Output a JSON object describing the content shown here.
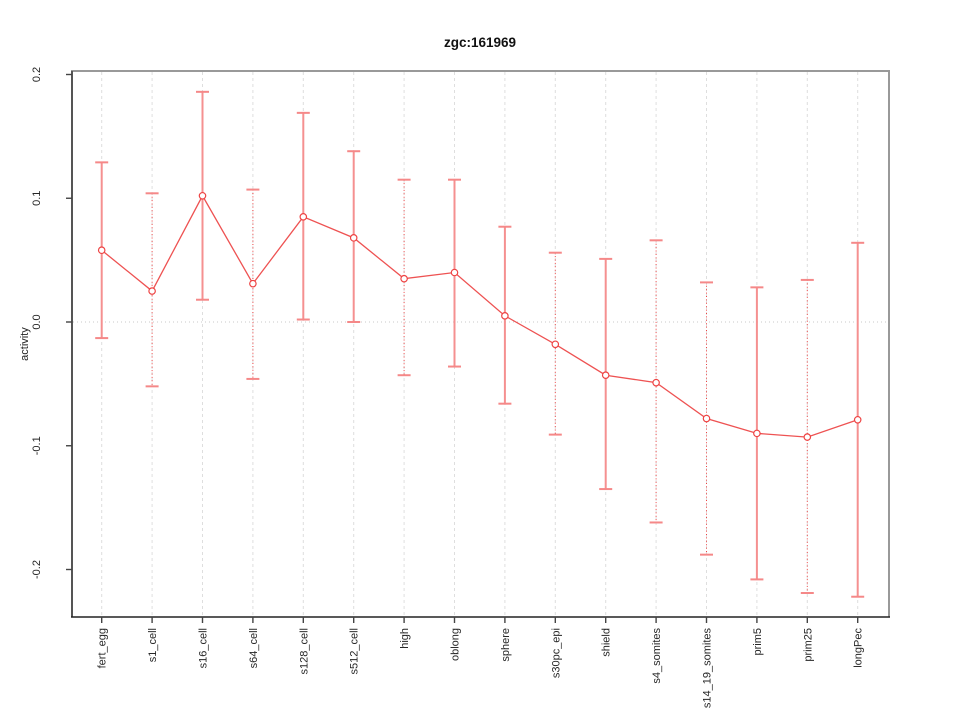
{
  "chart_data": {
    "type": "line",
    "title": "zgc:161969",
    "ylabel": "activity",
    "xlabel": "",
    "categories": [
      "fert_egg",
      "s1_cell",
      "s16_cell",
      "s64_cell",
      "s128_cell",
      "s512_cell",
      "high",
      "oblong",
      "sphere",
      "s30pc_epi",
      "shield",
      "s4_somites",
      "s14_19_somites",
      "prim5",
      "prim25",
      "longPec"
    ],
    "series": [
      {
        "name": "activity",
        "values": [
          0.058,
          0.025,
          0.102,
          0.031,
          0.085,
          0.068,
          0.035,
          0.04,
          0.005,
          -0.018,
          -0.043,
          -0.049,
          -0.078,
          -0.09,
          -0.093,
          -0.079
        ],
        "error_high": [
          0.129,
          0.104,
          0.186,
          0.107,
          0.169,
          0.138,
          0.115,
          0.115,
          0.077,
          0.056,
          0.051,
          0.066,
          0.032,
          0.028,
          0.034,
          0.064
        ],
        "error_low": [
          -0.013,
          -0.052,
          0.018,
          -0.046,
          0.002,
          0.0,
          -0.043,
          -0.036,
          -0.066,
          -0.091,
          -0.135,
          -0.162,
          -0.188,
          -0.208,
          -0.219,
          -0.222
        ]
      }
    ],
    "error_bar_styles": [
      "solid",
      "dotted",
      "solid",
      "dotted",
      "solid",
      "solid",
      "dotted",
      "solid",
      "solid",
      "dotted",
      "solid",
      "dotted",
      "dotted",
      "solid",
      "dotted",
      "solid"
    ],
    "yticks": {
      "values": [
        0.2,
        0.1,
        0.0,
        -0.1,
        -0.2
      ],
      "labels": [
        "0.2",
        "0.1",
        "0.0",
        "-0.1",
        "-0.2"
      ]
    },
    "ylim": [
      -0.239,
      0.203
    ],
    "grid": {
      "vertical": "dashed-per-category",
      "horizontal": "dotted-at-zero-only"
    },
    "legend_position": "none",
    "marker": "open-circle",
    "colors": {
      "line": "#ee5252",
      "marker": "#ee4343",
      "error_bar_solid": "#f59090",
      "error_bar_dotted": "#ee4343",
      "error_cap": "#f58888",
      "grid": "#dedede",
      "zero_line": "#c9c9c9",
      "box_top": "#999999",
      "box_right": "#999999",
      "box_left": "#555555",
      "box_bottom": "#222222",
      "tick": "#444444",
      "text": "#262626",
      "title": "#111111"
    }
  }
}
